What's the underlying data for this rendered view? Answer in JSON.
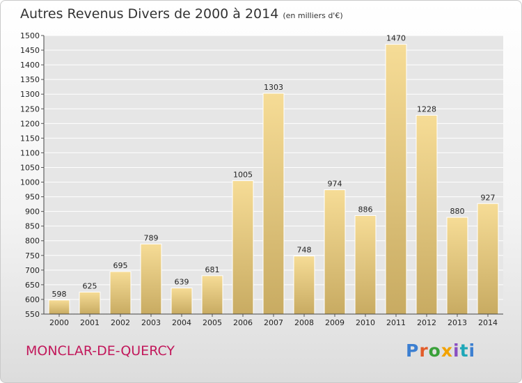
{
  "title": "Autres Revenus Divers de 2000 à 2014",
  "subtitle": "(en milliers d'€)",
  "commune": "MONCLAR-DE-QUERCY",
  "brand": "Proxiti",
  "colors": {
    "bar": "#e8c97a",
    "commune": "#c2185b"
  },
  "chart_data": {
    "type": "bar",
    "title": "Autres Revenus Divers de 2000 à 2014",
    "subtitle": "(en milliers d'€)",
    "categories": [
      "2000",
      "2001",
      "2002",
      "2003",
      "2004",
      "2005",
      "2006",
      "2007",
      "2008",
      "2009",
      "2010",
      "2011",
      "2012",
      "2013",
      "2014"
    ],
    "values": [
      598,
      625,
      695,
      789,
      639,
      681,
      1005,
      1303,
      748,
      974,
      886,
      1470,
      1228,
      880,
      927
    ],
    "ylim": [
      550,
      1500
    ],
    "yticks": [
      550,
      600,
      650,
      700,
      750,
      800,
      850,
      900,
      950,
      1000,
      1050,
      1100,
      1150,
      1200,
      1250,
      1300,
      1350,
      1400,
      1450,
      1500
    ],
    "grid": true,
    "legend": "none"
  }
}
